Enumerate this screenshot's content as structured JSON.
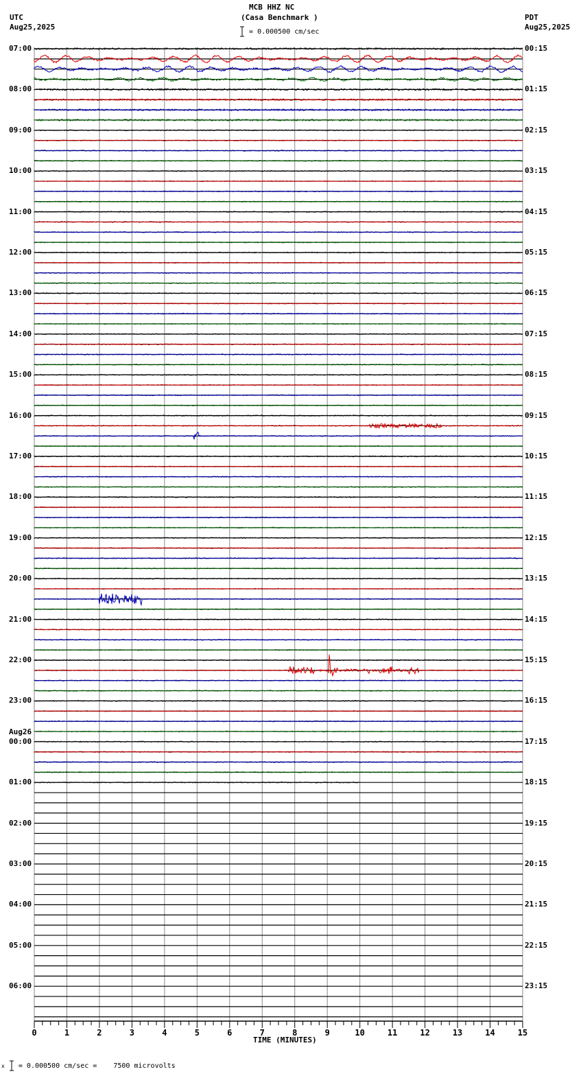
{
  "header": {
    "station": "MCB HHZ NC",
    "site": "(Casa Benchmark )",
    "scale_text": "= 0.000500 cm/sec",
    "left_tz": "UTC",
    "left_date": "Aug25,2025",
    "right_tz": "PDT",
    "right_date": "Aug25,2025"
  },
  "footer": {
    "scale_text": "= 0.000500 cm/sec =    7500 microvolts",
    "scale_prefix": "x"
  },
  "left_labels": [
    {
      "text": "07:00",
      "line": 0
    },
    {
      "text": "08:00",
      "line": 4
    },
    {
      "text": "09:00",
      "line": 8
    },
    {
      "text": "10:00",
      "line": 12
    },
    {
      "text": "11:00",
      "line": 16
    },
    {
      "text": "12:00",
      "line": 20
    },
    {
      "text": "13:00",
      "line": 24
    },
    {
      "text": "14:00",
      "line": 28
    },
    {
      "text": "15:00",
      "line": 32
    },
    {
      "text": "16:00",
      "line": 36
    },
    {
      "text": "17:00",
      "line": 40
    },
    {
      "text": "18:00",
      "line": 44
    },
    {
      "text": "19:00",
      "line": 48
    },
    {
      "text": "20:00",
      "line": 52
    },
    {
      "text": "21:00",
      "line": 56
    },
    {
      "text": "22:00",
      "line": 60
    },
    {
      "text": "23:00",
      "line": 64
    },
    {
      "text": "00:00",
      "line": 68,
      "date": "Aug26"
    },
    {
      "text": "01:00",
      "line": 72
    },
    {
      "text": "02:00",
      "line": 76
    },
    {
      "text": "03:00",
      "line": 80
    },
    {
      "text": "04:00",
      "line": 84
    },
    {
      "text": "05:00",
      "line": 88
    },
    {
      "text": "06:00",
      "line": 92
    }
  ],
  "right_labels": [
    {
      "text": "00:15",
      "line": 0
    },
    {
      "text": "01:15",
      "line": 4
    },
    {
      "text": "02:15",
      "line": 8
    },
    {
      "text": "03:15",
      "line": 12
    },
    {
      "text": "04:15",
      "line": 16
    },
    {
      "text": "05:15",
      "line": 20
    },
    {
      "text": "06:15",
      "line": 24
    },
    {
      "text": "07:15",
      "line": 28
    },
    {
      "text": "08:15",
      "line": 32
    },
    {
      "text": "09:15",
      "line": 36
    },
    {
      "text": "10:15",
      "line": 40
    },
    {
      "text": "11:15",
      "line": 44
    },
    {
      "text": "12:15",
      "line": 48
    },
    {
      "text": "13:15",
      "line": 52
    },
    {
      "text": "14:15",
      "line": 56
    },
    {
      "text": "15:15",
      "line": 60
    },
    {
      "text": "16:15",
      "line": 64
    },
    {
      "text": "17:15",
      "line": 68
    },
    {
      "text": "18:15",
      "line": 72
    },
    {
      "text": "19:15",
      "line": 76
    },
    {
      "text": "20:15",
      "line": 80
    },
    {
      "text": "21:15",
      "line": 84
    },
    {
      "text": "22:15",
      "line": 88
    },
    {
      "text": "23:15",
      "line": 92
    }
  ],
  "chart_data": {
    "type": "line",
    "title": "MCB HHZ NC (Casa Benchmark )",
    "subtitle": "= 0.000500 cm/sec",
    "xlabel": "TIME (MINUTES)",
    "ylabel": "",
    "x_ticks": [
      0,
      1,
      2,
      3,
      4,
      5,
      6,
      7,
      8,
      9,
      10,
      11,
      12,
      13,
      14,
      15
    ],
    "xlim": [
      0,
      15
    ],
    "minor_ticks_per_minute": 4,
    "grid": true,
    "lines_per_hour": 4,
    "total_lines": 96,
    "lines_with_data": 73,
    "last_line_data_end_minute": 10,
    "trace_colors": [
      "#000000",
      "#dd0000",
      "#0000bb",
      "#006600"
    ],
    "scale": "0.000500 cm/sec = 7500 microvolts",
    "events": [
      {
        "line": 1,
        "description": "long-period oscillation, high amplitude",
        "start_min": 0,
        "end_min": 15,
        "amp": 5
      },
      {
        "line": 2,
        "description": "long-period oscillation",
        "start_min": 0,
        "end_min": 15,
        "amp": 4
      },
      {
        "line": 3,
        "description": "long-period oscillation, small",
        "start_min": 0,
        "end_min": 15,
        "amp": 2
      },
      {
        "line": 37,
        "description": "small bursts",
        "start_min": 10.3,
        "end_min": 12.5,
        "amp": 3
      },
      {
        "line": 38,
        "description": "small spike",
        "start_min": 4.9,
        "end_min": 5.1,
        "amp": 6
      },
      {
        "line": 54,
        "description": "local event burst",
        "start_min": 2.0,
        "end_min": 3.3,
        "amp": 8
      },
      {
        "line": 61,
        "description": "earthquake, large spike",
        "start_min": 7.8,
        "end_min": 11.8,
        "peak_min": 9.05,
        "amp": 40
      }
    ]
  }
}
